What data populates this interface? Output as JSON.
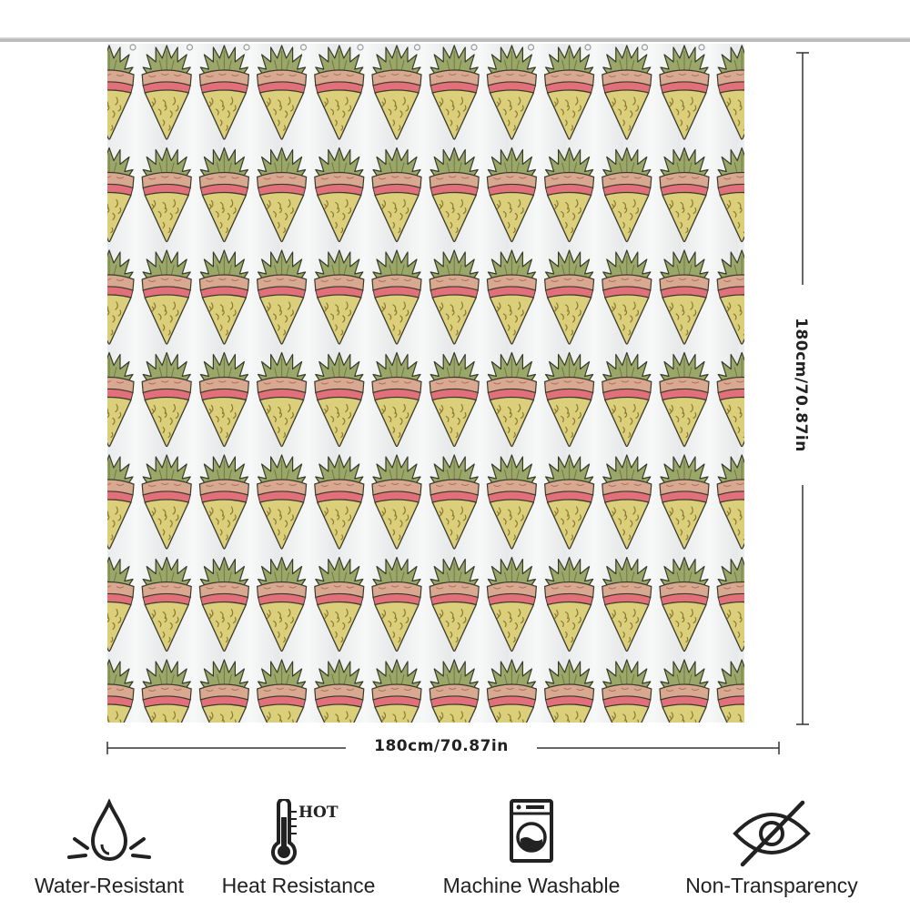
{
  "dimensions": {
    "width_label": "180cm/70.87in",
    "height_label": "180cm/70.87in"
  },
  "pattern": {
    "motif": "pineapple-pizza-slice-icon",
    "colors": {
      "background": "#eceeef",
      "crust": "#cfa28a",
      "crust_inner": "#f2c3a8",
      "sauce": "#e0707a",
      "cheese": "#d9cc7a",
      "leaves": "#8f9c5a",
      "outline": "#3a3a2a"
    }
  },
  "features": [
    {
      "icon": "water-drop-icon",
      "label": "Water-Resistant"
    },
    {
      "icon": "thermometer-hot-icon",
      "label": "Heat Resistance",
      "icon_text": "HOT"
    },
    {
      "icon": "washing-machine-icon",
      "label": "Machine Washable"
    },
    {
      "icon": "eye-slash-icon",
      "label": "Non-Transparency"
    }
  ]
}
